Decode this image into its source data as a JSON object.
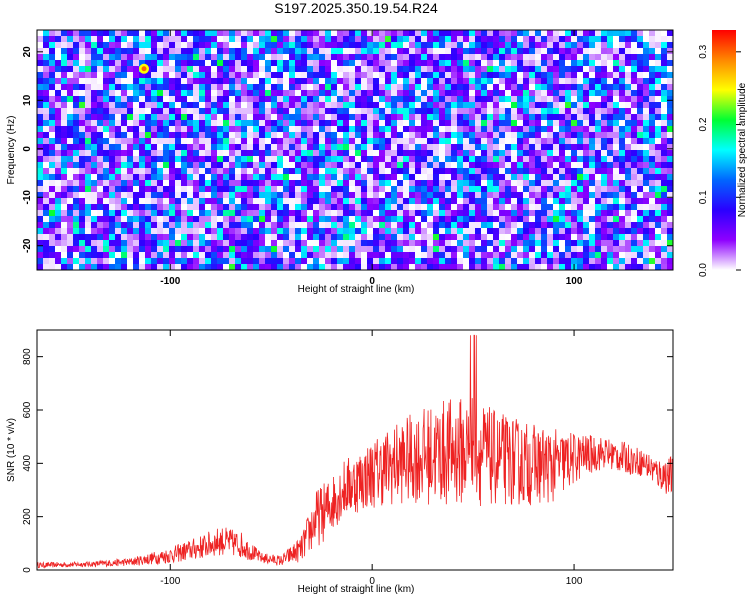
{
  "title": "S197.2025.350.19.54.R24",
  "spectrogram": {
    "type": "heatmap",
    "xlabel": "Height of straight line (km)",
    "ylabel": "Frequency (Hz)",
    "xlim": [
      -166,
      149
    ],
    "ylim": [
      -25,
      24.5
    ],
    "xticks": [
      -100,
      0,
      100
    ],
    "yticks": [
      -20,
      -10,
      0,
      10,
      20
    ],
    "colorbar": {
      "label": "Normalized spectral amplitude",
      "range": [
        0.0,
        0.33
      ],
      "ticks": [
        "0.0",
        "0.1",
        "0.2",
        "0.3"
      ],
      "ramp": [
        "#ffffff",
        "#8e00ff",
        "#2a00ff",
        "#0066ff",
        "#00ffff",
        "#00ff33",
        "#ffff00",
        "#ff8800",
        "#ff0000"
      ]
    }
  },
  "chart_data": [
    {
      "type": "heatmap",
      "description_values": "noise-like speckled field",
      "xlabel": "Height of straight line (km)",
      "ylabel": "Frequency (Hz)",
      "xlim": [
        -166,
        149
      ],
      "ylim": [
        -25,
        24.5
      ],
      "zlim": [
        0.0,
        0.33
      ],
      "peak": {
        "x": -113,
        "y": 16.5,
        "z": 0.25
      }
    },
    {
      "type": "line",
      "xlabel": "Height of straight line (km)",
      "ylabel": "SNR (10 * v/v)",
      "xlim": [
        -166,
        149
      ],
      "ylim": [
        0,
        900
      ],
      "xticks": [
        "-100",
        "0",
        "100"
      ],
      "yticks": [
        "0",
        "200",
        "400",
        "600",
        "800"
      ],
      "color": "#ee2222",
      "envelope": {
        "x": [
          -166,
          -140,
          -120,
          -100,
          -85,
          -75,
          -65,
          -55,
          -45,
          -35,
          -28,
          -22,
          -15,
          -5,
          5,
          20,
          35,
          50,
          60,
          75,
          90,
          105,
          115,
          125,
          135,
          142,
          149
        ],
        "mid": [
          18,
          22,
          30,
          55,
          85,
          110,
          95,
          45,
          35,
          80,
          190,
          230,
          300,
          340,
          380,
          420,
          440,
          450,
          420,
          400,
          390,
          430,
          440,
          420,
          400,
          360,
          350
        ],
        "amp": [
          10,
          10,
          15,
          30,
          45,
          55,
          50,
          20,
          20,
          50,
          110,
          110,
          110,
          120,
          140,
          170,
          200,
          210,
          180,
          160,
          140,
          80,
          60,
          60,
          50,
          60,
          80
        ]
      }
    }
  ]
}
